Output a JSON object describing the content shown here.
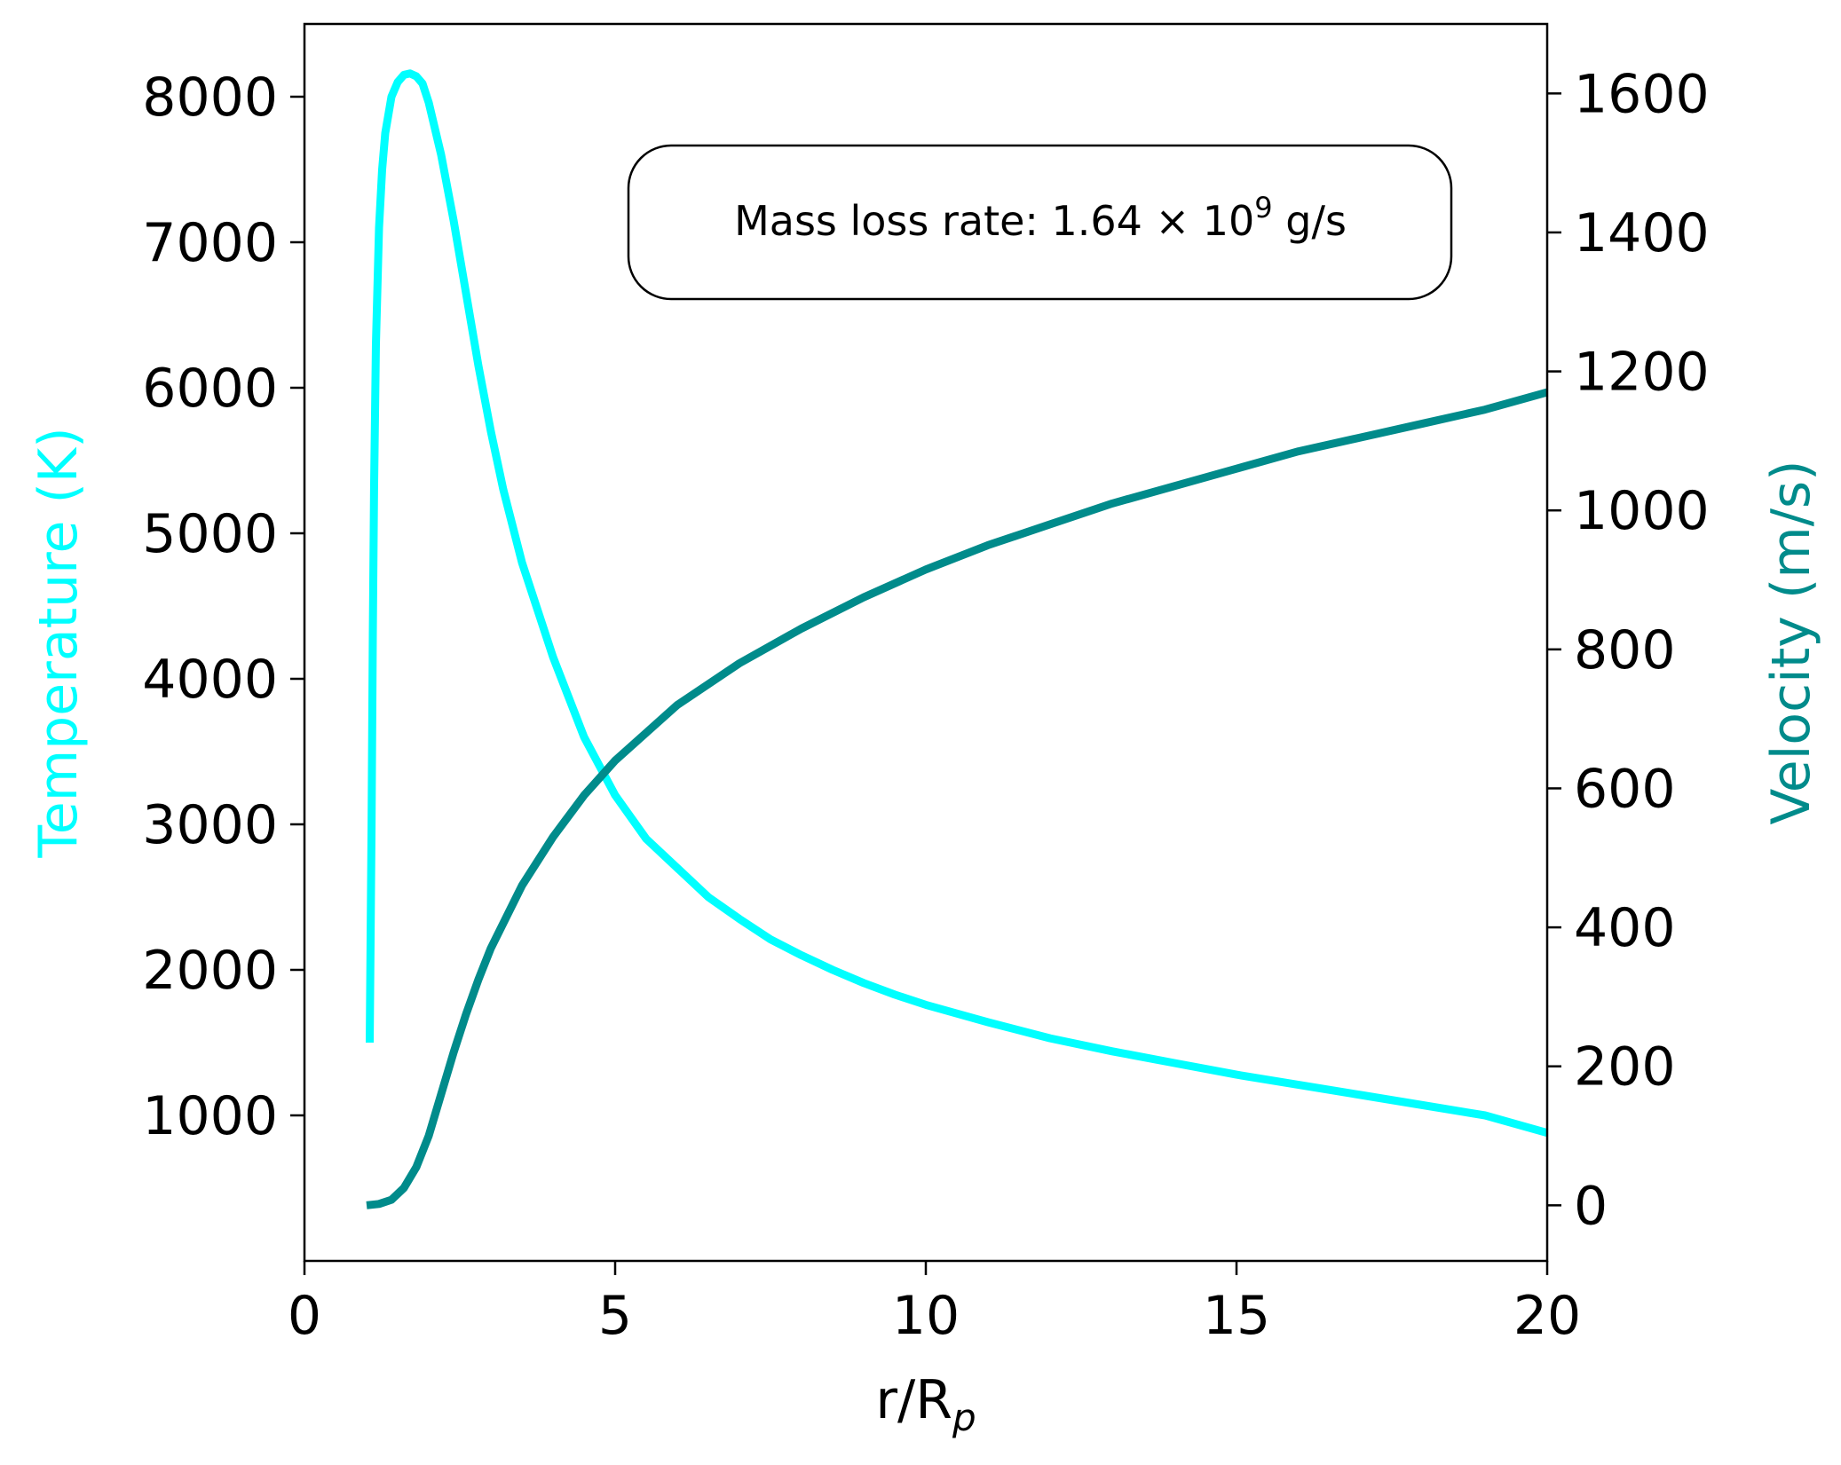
{
  "chart_data": {
    "type": "line",
    "xlabel_main": "r/R",
    "xlabel_sub": "p",
    "ylabel_left": "Temperature (K)",
    "ylabel_right": "Velocity (m/s)",
    "xlim": [
      0,
      20
    ],
    "ylim_left": [
      0,
      8500
    ],
    "ylim_right": [
      -80,
      1700
    ],
    "x_ticks": [
      0,
      5,
      10,
      15,
      20
    ],
    "y_ticks_left": [
      1000,
      2000,
      3000,
      4000,
      5000,
      6000,
      7000,
      8000
    ],
    "y_ticks_right": [
      0,
      200,
      400,
      600,
      800,
      1000,
      1200,
      1400,
      1600
    ],
    "grid": false,
    "annotation": {
      "prefix": "Mass loss rate: 1.64 × 10",
      "exponent": "9",
      "suffix": " g/s"
    },
    "colors": {
      "temperature": "#00ffff",
      "velocity": "#008b8b",
      "axes": "#000000"
    },
    "series": [
      {
        "axis": "left",
        "x": [
          1.05,
          1.08,
          1.1,
          1.12,
          1.15,
          1.2,
          1.25,
          1.3,
          1.4,
          1.5,
          1.6,
          1.7,
          1.8,
          1.9,
          2.0,
          2.2,
          2.4,
          2.6,
          2.8,
          3.0,
          3.2,
          3.5,
          4.0,
          4.5,
          5.0,
          5.5,
          6.0,
          6.5,
          7.0,
          7.5,
          8.0,
          8.5,
          9.0,
          9.5,
          10.0,
          11.0,
          12.0,
          13.0,
          14.0,
          15.0,
          16.0,
          17.0,
          18.0,
          19.0,
          20.0
        ],
        "values": [
          1500,
          3000,
          4300,
          5300,
          6300,
          7100,
          7500,
          7750,
          8000,
          8100,
          8150,
          8160,
          8140,
          8090,
          7960,
          7600,
          7150,
          6650,
          6150,
          5700,
          5300,
          4800,
          4150,
          3600,
          3200,
          2900,
          2700,
          2500,
          2350,
          2210,
          2100,
          2000,
          1910,
          1830,
          1760,
          1640,
          1530,
          1440,
          1360,
          1280,
          1210,
          1140,
          1070,
          1000,
          880
        ]
      },
      {
        "axis": "right",
        "x": [
          1.0,
          1.2,
          1.4,
          1.6,
          1.8,
          2.0,
          2.2,
          2.4,
          2.6,
          2.8,
          3.0,
          3.5,
          4.0,
          4.5,
          5.0,
          5.5,
          6.0,
          7.0,
          8.0,
          9.0,
          10.0,
          11.0,
          12.0,
          13.0,
          14.0,
          15.0,
          16.0,
          17.0,
          18.0,
          19.0,
          20.0
        ],
        "values": [
          0,
          2,
          8,
          25,
          55,
          100,
          160,
          220,
          275,
          325,
          370,
          460,
          530,
          590,
          640,
          680,
          720,
          780,
          830,
          875,
          915,
          950,
          980,
          1010,
          1035,
          1060,
          1085,
          1105,
          1125,
          1145,
          1170
        ]
      }
    ]
  }
}
